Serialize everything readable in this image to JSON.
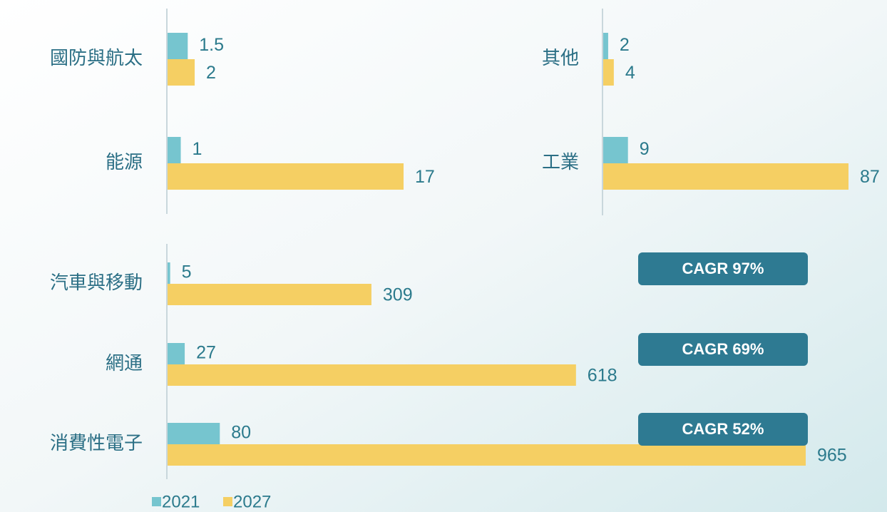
{
  "legend": [
    {
      "name": "2021",
      "color": "#76c5cf"
    },
    {
      "name": "2027",
      "color": "#f5cf63"
    }
  ],
  "chart_data": [
    {
      "type": "barh",
      "categories": [
        "國防與航太",
        "能源"
      ],
      "xlim": [
        0,
        17
      ],
      "series": [
        {
          "values": [
            1.5,
            1
          ]
        },
        {
          "values": [
            2,
            17
          ]
        }
      ]
    },
    {
      "type": "barh",
      "categories": [
        "其他",
        "工業"
      ],
      "xlim": [
        0,
        87
      ],
      "series": [
        {
          "values": [
            2,
            9
          ]
        },
        {
          "values": [
            4,
            87
          ]
        }
      ]
    },
    {
      "type": "barh",
      "categories": [
        "汽車與移動",
        "網通",
        "消費性電子"
      ],
      "xlim": [
        0,
        965
      ],
      "series": [
        {
          "values": [
            5,
            27,
            80
          ]
        },
        {
          "values": [
            309,
            618,
            965
          ]
        }
      ],
      "annotations": [
        "CAGR 97%",
        "CAGR 69%",
        "CAGR 52%"
      ]
    }
  ]
}
